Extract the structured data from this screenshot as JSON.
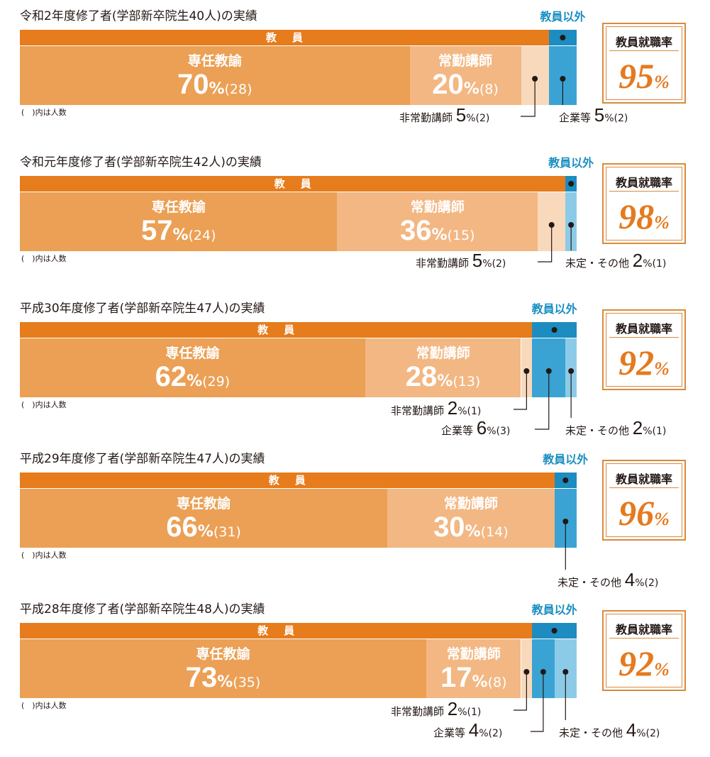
{
  "colors": {
    "strip_teacher": "#e67c1c",
    "strip_non": "#1d8cc0",
    "fulltime": "#eba055",
    "fulltime_alt": "#ec9f4f",
    "fulltime_last": "#f0a35d",
    "fulltime_29": "#ee9a47",
    "regular_lecturer": "#f3b783",
    "parttime": "#f8d9bc",
    "company": "#3aa3d4",
    "other": "#8ccbe8",
    "other_dark": "#2f9bcf"
  },
  "labels": {
    "teacher": "教員",
    "non_teacher": "教員以外",
    "note": "(　)内は人数",
    "rate_label": "教員就職率",
    "pct": "%",
    "fulltime": "専任教諭",
    "regular": "常勤講師",
    "parttime": "非常勤講師",
    "company": "企業等",
    "other": "未定・その他"
  },
  "chart_data": [
    {
      "type": "bar",
      "title": "令和2年度修了者(学部新卒院生40人)の実績",
      "rate": "95",
      "segments": [
        {
          "name": "専任教諭",
          "pct": 70,
          "count": "(28)",
          "group": "teacher"
        },
        {
          "name": "常勤講師",
          "pct": 20,
          "count": "(8)",
          "group": "teacher"
        },
        {
          "name": "非常勤講師",
          "pct": 5,
          "count": "(2)",
          "group": "teacher"
        },
        {
          "name": "企業等",
          "pct": 5,
          "count": "(2)",
          "group": "non"
        }
      ]
    },
    {
      "type": "bar",
      "title": "令和元年度修了者(学部新卒院生42人)の実績",
      "rate": "98",
      "segments": [
        {
          "name": "専任教諭",
          "pct": 57,
          "count": "(24)",
          "group": "teacher"
        },
        {
          "name": "常勤講師",
          "pct": 36,
          "count": "(15)",
          "group": "teacher"
        },
        {
          "name": "非常勤講師",
          "pct": 5,
          "count": "(2)",
          "group": "teacher"
        },
        {
          "name": "未定・その他",
          "pct": 2,
          "count": "(1)",
          "group": "non"
        }
      ]
    },
    {
      "type": "bar",
      "title": "平成30年度修了者(学部新卒院生47人)の実績",
      "rate": "92",
      "segments": [
        {
          "name": "専任教諭",
          "pct": 62,
          "count": "(29)",
          "group": "teacher"
        },
        {
          "name": "常勤講師",
          "pct": 28,
          "count": "(13)",
          "group": "teacher"
        },
        {
          "name": "非常勤講師",
          "pct": 2,
          "count": "(1)",
          "group": "teacher"
        },
        {
          "name": "企業等",
          "pct": 6,
          "count": "(3)",
          "group": "non"
        },
        {
          "name": "未定・その他",
          "pct": 2,
          "count": "(1)",
          "group": "non"
        }
      ]
    },
    {
      "type": "bar",
      "title": "平成29年度修了者(学部新卒院生47人)の実績",
      "rate": "96",
      "segments": [
        {
          "name": "専任教諭",
          "pct": 66,
          "count": "(31)",
          "group": "teacher"
        },
        {
          "name": "常勤講師",
          "pct": 30,
          "count": "(14)",
          "group": "teacher"
        },
        {
          "name": "未定・その他",
          "pct": 4,
          "count": "(2)",
          "group": "non"
        }
      ]
    },
    {
      "type": "bar",
      "title": "平成28年度修了者(学部新卒院生48人)の実績",
      "rate": "92",
      "segments": [
        {
          "name": "専任教諭",
          "pct": 73,
          "count": "(35)",
          "group": "teacher"
        },
        {
          "name": "常勤講師",
          "pct": 17,
          "count": "(8)",
          "group": "teacher"
        },
        {
          "name": "非常勤講師",
          "pct": 2,
          "count": "(1)",
          "group": "teacher"
        },
        {
          "name": "企業等",
          "pct": 4,
          "count": "(2)",
          "group": "non"
        },
        {
          "name": "未定・その他",
          "pct": 4,
          "count": "(2)",
          "group": "non"
        }
      ]
    }
  ]
}
